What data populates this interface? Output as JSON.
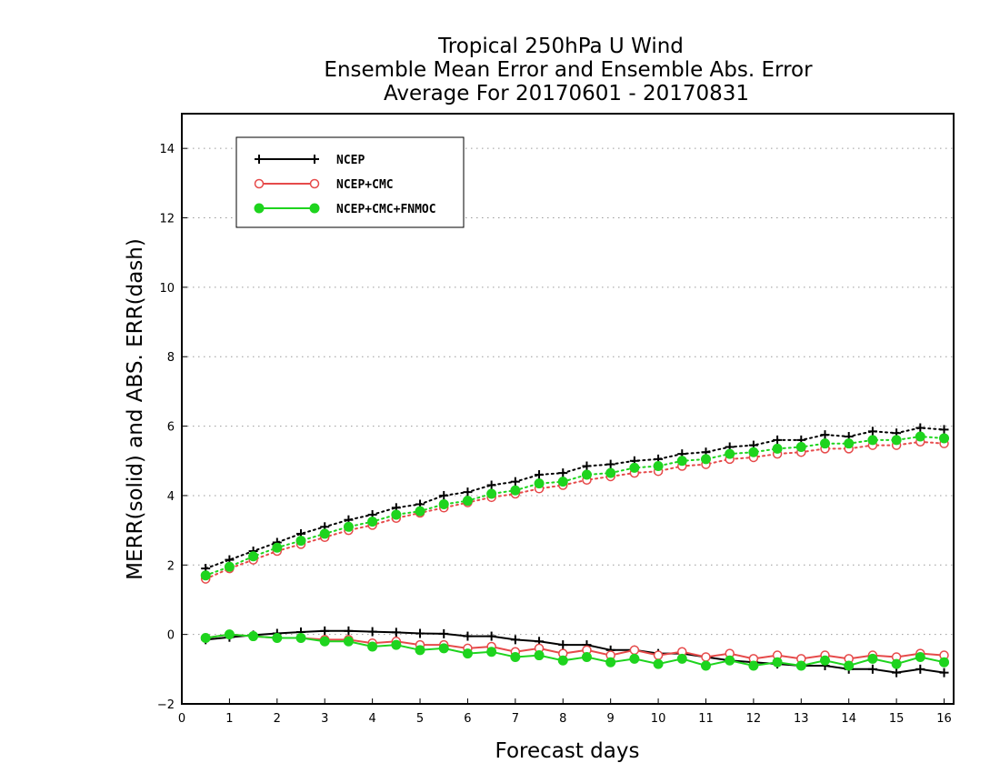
{
  "chart_data": {
    "type": "line",
    "title": [
      "Tropical 250hPa U Wind",
      "Ensemble Mean Error and Ensemble Abs. Error",
      "Average For 20170601 - 20170831"
    ],
    "xlabel": "Forecast days",
    "ylabel": "MERR(solid) and ABS. ERR(dash)",
    "xlim": [
      0,
      16.2
    ],
    "ylim": [
      -2,
      15
    ],
    "xticks": [
      0,
      1,
      2,
      3,
      4,
      5,
      6,
      7,
      8,
      9,
      10,
      11,
      12,
      13,
      14,
      15,
      16
    ],
    "yticks": [
      -2,
      0,
      2,
      4,
      6,
      8,
      10,
      12,
      14
    ],
    "grid": "horizontal dotted",
    "legend_position": "top-left",
    "x": [
      0.5,
      1.0,
      1.5,
      2.0,
      2.5,
      3.0,
      3.5,
      4.0,
      4.5,
      5.0,
      5.5,
      6.0,
      6.5,
      7.0,
      7.5,
      8.0,
      8.5,
      9.0,
      9.5,
      10.0,
      10.5,
      11.0,
      11.5,
      12.0,
      12.5,
      13.0,
      13.5,
      14.0,
      14.5,
      15.0,
      15.5,
      16.0
    ],
    "series": [
      {
        "name": "NCEP",
        "color": "#000000",
        "marker": "plus",
        "merr": [
          -0.15,
          -0.08,
          -0.02,
          0.03,
          0.07,
          0.1,
          0.1,
          0.08,
          0.06,
          0.03,
          0.02,
          -0.05,
          -0.05,
          -0.15,
          -0.2,
          -0.3,
          -0.3,
          -0.45,
          -0.45,
          -0.55,
          -0.55,
          -0.65,
          -0.75,
          -0.8,
          -0.85,
          -0.9,
          -0.9,
          -1.0,
          -1.0,
          -1.1,
          -1.0,
          -1.1
        ],
        "abs_err": [
          1.9,
          2.15,
          2.4,
          2.65,
          2.9,
          3.1,
          3.3,
          3.45,
          3.65,
          3.75,
          4.0,
          4.1,
          4.3,
          4.4,
          4.6,
          4.65,
          4.85,
          4.9,
          5.0,
          5.05,
          5.2,
          5.25,
          5.4,
          5.45,
          5.6,
          5.6,
          5.75,
          5.7,
          5.85,
          5.8,
          5.95,
          5.9
        ]
      },
      {
        "name": "NCEP+CMC",
        "color": "#e64a4a",
        "marker": "open-circle",
        "merr": [
          -0.1,
          0.0,
          -0.05,
          -0.1,
          -0.1,
          -0.15,
          -0.15,
          -0.25,
          -0.2,
          -0.3,
          -0.3,
          -0.4,
          -0.35,
          -0.5,
          -0.4,
          -0.55,
          -0.45,
          -0.6,
          -0.45,
          -0.6,
          -0.5,
          -0.65,
          -0.55,
          -0.7,
          -0.6,
          -0.7,
          -0.6,
          -0.7,
          -0.6,
          -0.65,
          -0.55,
          -0.6
        ],
        "abs_err": [
          1.6,
          1.9,
          2.15,
          2.4,
          2.6,
          2.8,
          3.0,
          3.15,
          3.35,
          3.5,
          3.65,
          3.8,
          3.95,
          4.05,
          4.2,
          4.3,
          4.45,
          4.55,
          4.65,
          4.7,
          4.85,
          4.9,
          5.05,
          5.1,
          5.2,
          5.25,
          5.35,
          5.35,
          5.45,
          5.45,
          5.55,
          5.5
        ]
      },
      {
        "name": "NCEP+CMC+FNMOC",
        "color": "#1ed41e",
        "marker": "filled-circle",
        "merr": [
          -0.1,
          0.0,
          -0.05,
          -0.1,
          -0.1,
          -0.2,
          -0.2,
          -0.35,
          -0.3,
          -0.45,
          -0.4,
          -0.55,
          -0.5,
          -0.65,
          -0.6,
          -0.75,
          -0.65,
          -0.8,
          -0.7,
          -0.85,
          -0.7,
          -0.9,
          -0.75,
          -0.9,
          -0.8,
          -0.9,
          -0.75,
          -0.9,
          -0.7,
          -0.85,
          -0.65,
          -0.8
        ],
        "abs_err": [
          1.7,
          1.95,
          2.25,
          2.5,
          2.7,
          2.9,
          3.1,
          3.25,
          3.45,
          3.55,
          3.75,
          3.85,
          4.05,
          4.15,
          4.35,
          4.4,
          4.6,
          4.65,
          4.8,
          4.85,
          5.0,
          5.05,
          5.2,
          5.25,
          5.35,
          5.4,
          5.5,
          5.5,
          5.6,
          5.6,
          5.7,
          5.65
        ]
      }
    ]
  }
}
